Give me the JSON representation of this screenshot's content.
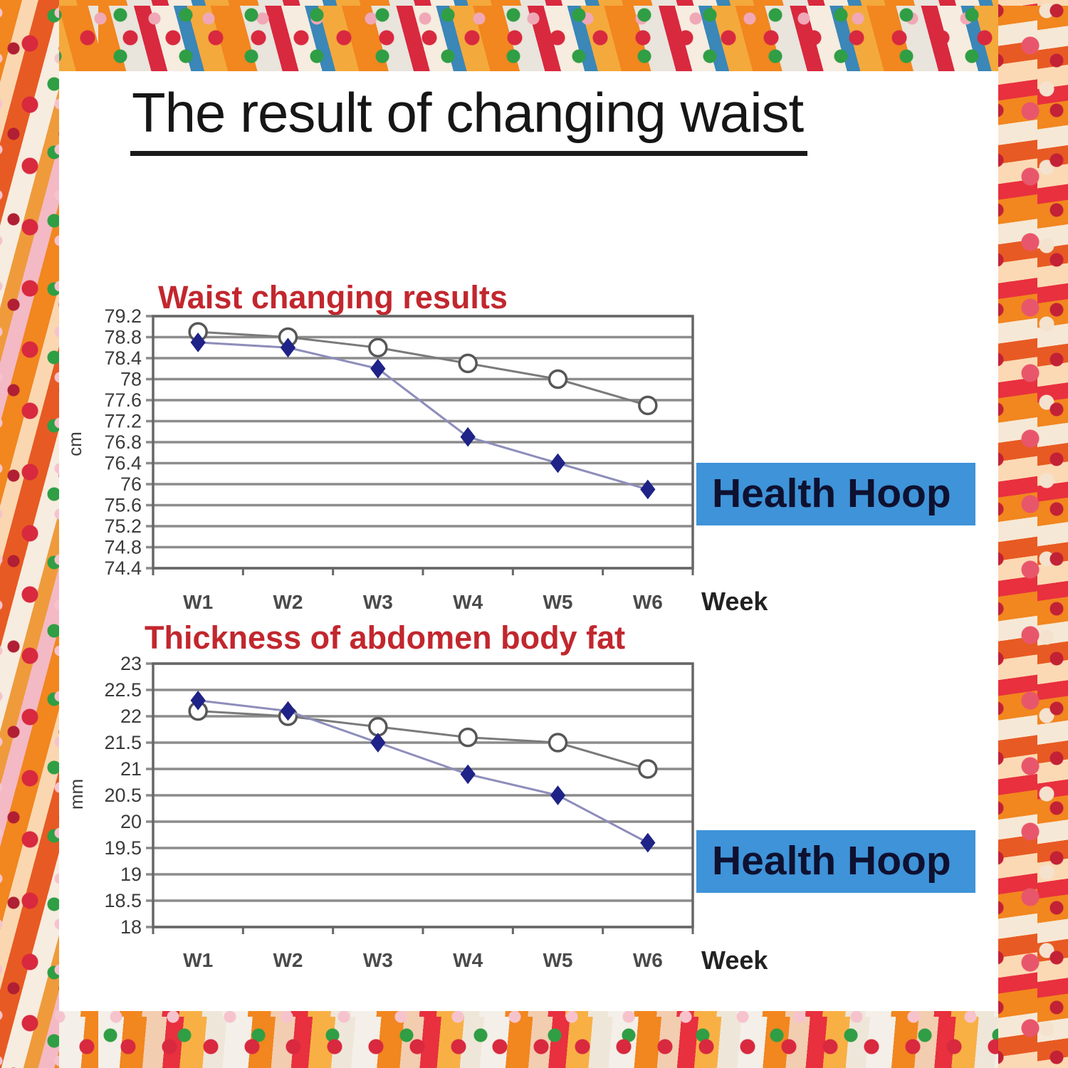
{
  "page": {
    "title": "The result of changing waist"
  },
  "colors": {
    "badge_bg": "#3f93d8",
    "badge_text": "#0e1130",
    "chart_title_red": "#c2272e",
    "grid": "#8c8c8c",
    "plot_border": "#666666",
    "axis_text": "#3b3b3b",
    "x_axis_text": "#4a4a4a",
    "week_text": "#222222"
  },
  "chart_data": [
    {
      "type": "line",
      "title": "Waist changing results",
      "ylabel": "cm",
      "xlabel": "Week",
      "categories": [
        "W1",
        "W2",
        "W3",
        "W4",
        "W5",
        "W6"
      ],
      "yticks": [
        "79.2",
        "78.8",
        "78.4",
        "78",
        "77.6",
        "77.2",
        "76.8",
        "76.4",
        "76",
        "75.6",
        "75.2",
        "74.8",
        "74.4"
      ],
      "ylim": [
        74.4,
        79.2
      ],
      "grid": true,
      "badge": "Health Hoop",
      "series": [
        {
          "name": "",
          "marker": "open-circle",
          "marker_fill": "#ffffff",
          "marker_stroke": "#575757",
          "line_color": "#7a7a7a",
          "values": [
            78.9,
            78.8,
            78.6,
            78.3,
            78.0,
            77.5
          ]
        },
        {
          "name": "Health Hoop",
          "marker": "diamond",
          "marker_fill": "#1f2287",
          "marker_stroke": "#1f2287",
          "line_color": "#8d8dbb",
          "values": [
            78.7,
            78.6,
            78.2,
            76.9,
            76.4,
            75.9
          ]
        }
      ]
    },
    {
      "type": "line",
      "title": "Thickness of abdomen body fat",
      "ylabel": "mm",
      "xlabel": "Week",
      "categories": [
        "W1",
        "W2",
        "W3",
        "W4",
        "W5",
        "W6"
      ],
      "yticks": [
        "23",
        "22.5",
        "22",
        "21.5",
        "21",
        "20.5",
        "20",
        "19.5",
        "19",
        "18.5",
        "18"
      ],
      "ylim": [
        18,
        23
      ],
      "grid": true,
      "badge": "Health Hoop",
      "series": [
        {
          "name": "",
          "marker": "open-circle",
          "marker_fill": "#ffffff",
          "marker_stroke": "#575757",
          "line_color": "#7a7a7a",
          "values": [
            22.1,
            22.0,
            21.8,
            21.6,
            21.5,
            21.0
          ]
        },
        {
          "name": "Health Hoop",
          "marker": "diamond",
          "marker_fill": "#1f2287",
          "marker_stroke": "#1f2287",
          "line_color": "#8d8dbb",
          "values": [
            22.3,
            22.1,
            21.5,
            20.9,
            20.5,
            19.6
          ]
        }
      ]
    }
  ]
}
